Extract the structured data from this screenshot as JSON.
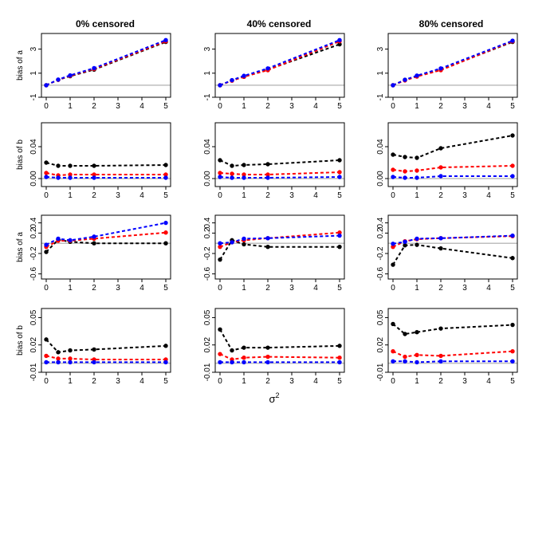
{
  "figure": {
    "x_axis_label": "σ",
    "x_axis_label_superscript": "2",
    "series_colors": {
      "black": "#000000",
      "red": "#ff0000",
      "blue": "#0000ff",
      "reference": "#bebebe"
    }
  },
  "columns": [
    {
      "title": "0% censored"
    },
    {
      "title": "40% censored"
    },
    {
      "title": "80% censored"
    }
  ],
  "chart_data": [
    {
      "type": "line",
      "row": 0,
      "col": 0,
      "ylabel": "bias of a",
      "x": [
        0,
        0.5,
        1,
        2,
        5
      ],
      "ylim": [
        -1,
        4.3
      ],
      "yticks": [
        "-1",
        "1",
        "3"
      ],
      "yticks_values": [
        -1,
        1,
        3
      ],
      "xticks": [
        "0",
        "1",
        "2",
        "3",
        "4",
        "5"
      ],
      "reference": 0,
      "series": [
        {
          "name": "black",
          "color": "#000000",
          "values": [
            0.0,
            0.45,
            0.75,
            1.3,
            3.6
          ]
        },
        {
          "name": "red",
          "color": "#ff0000",
          "values": [
            0.0,
            0.45,
            0.78,
            1.35,
            3.65
          ]
        },
        {
          "name": "blue",
          "color": "#0000ff",
          "values": [
            0.0,
            0.47,
            0.82,
            1.42,
            3.75
          ]
        }
      ]
    },
    {
      "type": "line",
      "row": 0,
      "col": 1,
      "ylabel": "",
      "x": [
        0,
        0.5,
        1,
        2,
        5
      ],
      "ylim": [
        -1,
        4.3
      ],
      "yticks": [
        "-1",
        "1",
        "3"
      ],
      "yticks_values": [
        -1,
        1,
        3
      ],
      "xticks": [
        "0",
        "1",
        "2",
        "3",
        "4",
        "5"
      ],
      "reference": 0,
      "series": [
        {
          "name": "black",
          "color": "#000000",
          "values": [
            0.0,
            0.4,
            0.7,
            1.3,
            3.4
          ]
        },
        {
          "name": "red",
          "color": "#ff0000",
          "values": [
            0.0,
            0.38,
            0.7,
            1.25,
            3.65
          ]
        },
        {
          "name": "blue",
          "color": "#0000ff",
          "values": [
            0.0,
            0.42,
            0.78,
            1.4,
            3.75
          ]
        }
      ]
    },
    {
      "type": "line",
      "row": 0,
      "col": 2,
      "ylabel": "",
      "x": [
        0,
        0.5,
        1,
        2,
        5
      ],
      "ylim": [
        -1,
        4.3
      ],
      "yticks": [
        "-1",
        "1",
        "3"
      ],
      "yticks_values": [
        -1,
        1,
        3
      ],
      "xticks": [
        "0",
        "1",
        "2",
        "3",
        "4",
        "5"
      ],
      "reference": 0,
      "series": [
        {
          "name": "black",
          "color": "#000000",
          "values": [
            0.0,
            0.45,
            0.75,
            1.3,
            3.6
          ]
        },
        {
          "name": "red",
          "color": "#ff0000",
          "values": [
            0.0,
            0.4,
            0.72,
            1.25,
            3.65
          ]
        },
        {
          "name": "blue",
          "color": "#0000ff",
          "values": [
            0.0,
            0.45,
            0.8,
            1.4,
            3.7
          ]
        }
      ]
    },
    {
      "type": "line",
      "row": 1,
      "col": 0,
      "ylabel": "bias of b",
      "x": [
        0,
        0.5,
        1,
        2,
        5
      ],
      "ylim": [
        -0.01,
        0.07
      ],
      "yticks": [
        "0.00",
        "0.04"
      ],
      "yticks_values": [
        0,
        0.04
      ],
      "xticks": [
        "0",
        "1",
        "2",
        "3",
        "4",
        "5"
      ],
      "reference": 0,
      "series": [
        {
          "name": "black",
          "color": "#000000",
          "values": [
            0.02,
            0.016,
            0.016,
            0.016,
            0.017
          ]
        },
        {
          "name": "red",
          "color": "#ff0000",
          "values": [
            0.007,
            0.004,
            0.005,
            0.005,
            0.005
          ]
        },
        {
          "name": "blue",
          "color": "#0000ff",
          "values": [
            0.002,
            0.001,
            0.001,
            0.001,
            0.001
          ]
        }
      ]
    },
    {
      "type": "line",
      "row": 1,
      "col": 1,
      "ylabel": "",
      "x": [
        0,
        0.5,
        1,
        2,
        5
      ],
      "ylim": [
        -0.01,
        0.07
      ],
      "yticks": [
        "0.00",
        "0.04"
      ],
      "yticks_values": [
        0,
        0.04
      ],
      "xticks": [
        "0",
        "1",
        "2",
        "3",
        "4",
        "5"
      ],
      "reference": 0,
      "series": [
        {
          "name": "black",
          "color": "#000000",
          "values": [
            0.023,
            0.016,
            0.017,
            0.018,
            0.023
          ]
        },
        {
          "name": "red",
          "color": "#ff0000",
          "values": [
            0.007,
            0.006,
            0.005,
            0.005,
            0.008
          ]
        },
        {
          "name": "blue",
          "color": "#0000ff",
          "values": [
            0.002,
            0.001,
            0.001,
            0.001,
            0.002
          ]
        }
      ]
    },
    {
      "type": "line",
      "row": 1,
      "col": 2,
      "ylabel": "",
      "x": [
        0,
        0.5,
        1,
        2,
        5
      ],
      "ylim": [
        -0.01,
        0.07
      ],
      "yticks": [
        "0.00",
        "0.04"
      ],
      "yticks_values": [
        0,
        0.04
      ],
      "xticks": [
        "0",
        "1",
        "2",
        "3",
        "4",
        "5"
      ],
      "reference": 0,
      "series": [
        {
          "name": "black",
          "color": "#000000",
          "values": [
            0.03,
            0.027,
            0.026,
            0.038,
            0.054
          ]
        },
        {
          "name": "red",
          "color": "#ff0000",
          "values": [
            0.011,
            0.009,
            0.01,
            0.014,
            0.016
          ]
        },
        {
          "name": "blue",
          "color": "#0000ff",
          "values": [
            0.002,
            0.001,
            0.001,
            0.003,
            0.003
          ]
        }
      ]
    },
    {
      "type": "line",
      "row": 2,
      "col": 0,
      "ylabel": "bias of a",
      "x": [
        0,
        0.5,
        1,
        2,
        5
      ],
      "ylim": [
        -0.7,
        0.55
      ],
      "yticks": [
        "-0.6",
        "-0.2",
        "0.2",
        "0.4"
      ],
      "yticks_values": [
        -0.6,
        -0.2,
        0.2,
        0.4
      ],
      "xticks": [
        "0",
        "1",
        "2",
        "3",
        "4",
        "5"
      ],
      "reference": 0,
      "series": [
        {
          "name": "black",
          "color": "#000000",
          "values": [
            -0.17,
            0.07,
            0.03,
            0.0,
            0.0
          ]
        },
        {
          "name": "red",
          "color": "#ff0000",
          "values": [
            -0.07,
            0.05,
            0.05,
            0.09,
            0.21
          ]
        },
        {
          "name": "blue",
          "color": "#0000ff",
          "values": [
            -0.03,
            0.09,
            0.06,
            0.13,
            0.4
          ]
        }
      ]
    },
    {
      "type": "line",
      "row": 2,
      "col": 1,
      "ylabel": "",
      "x": [
        0,
        0.5,
        1,
        2,
        5
      ],
      "ylim": [
        -0.7,
        0.55
      ],
      "yticks": [
        "-0.6",
        "-0.2",
        "0.2",
        "0.4"
      ],
      "yticks_values": [
        -0.6,
        -0.2,
        0.2,
        0.4
      ],
      "xticks": [
        "0",
        "1",
        "2",
        "3",
        "4",
        "5"
      ],
      "reference": 0,
      "series": [
        {
          "name": "black",
          "color": "#000000",
          "values": [
            -0.32,
            0.06,
            -0.02,
            -0.07,
            -0.07
          ]
        },
        {
          "name": "red",
          "color": "#ff0000",
          "values": [
            -0.07,
            0.02,
            0.06,
            0.1,
            0.21
          ]
        },
        {
          "name": "blue",
          "color": "#0000ff",
          "values": [
            0.0,
            0.02,
            0.09,
            0.1,
            0.15
          ]
        }
      ]
    },
    {
      "type": "line",
      "row": 2,
      "col": 2,
      "ylabel": "",
      "x": [
        0,
        0.5,
        1,
        2,
        5
      ],
      "ylim": [
        -0.7,
        0.55
      ],
      "yticks": [
        "-0.6",
        "-0.2",
        "0.2",
        "0.4"
      ],
      "yticks_values": [
        -0.6,
        -0.2,
        0.2,
        0.4
      ],
      "xticks": [
        "0",
        "1",
        "2",
        "3",
        "4",
        "5"
      ],
      "reference": 0,
      "series": [
        {
          "name": "black",
          "color": "#000000",
          "values": [
            -0.42,
            -0.04,
            -0.03,
            -0.1,
            -0.29
          ]
        },
        {
          "name": "red",
          "color": "#ff0000",
          "values": [
            -0.07,
            0.04,
            0.08,
            0.1,
            0.14
          ]
        },
        {
          "name": "blue",
          "color": "#0000ff",
          "values": [
            -0.01,
            0.03,
            0.09,
            0.1,
            0.15
          ]
        }
      ]
    },
    {
      "type": "line",
      "row": 3,
      "col": 0,
      "ylabel": "bias of b",
      "x": [
        0,
        0.5,
        1,
        2,
        5
      ],
      "ylim": [
        -0.01,
        0.06
      ],
      "yticks": [
        "-0.01",
        "0.02",
        "0.05"
      ],
      "yticks_values": [
        -0.01,
        0.02,
        0.05
      ],
      "xticks": [
        "0",
        "1",
        "2",
        "3",
        "4",
        "5"
      ],
      "reference": 0,
      "series": [
        {
          "name": "black",
          "color": "#000000",
          "values": [
            0.026,
            0.012,
            0.014,
            0.015,
            0.019
          ]
        },
        {
          "name": "red",
          "color": "#ff0000",
          "values": [
            0.008,
            0.005,
            0.005,
            0.004,
            0.004
          ]
        },
        {
          "name": "blue",
          "color": "#0000ff",
          "values": [
            0.001,
            0.001,
            0.001,
            0.001,
            0.001
          ]
        }
      ]
    },
    {
      "type": "line",
      "row": 3,
      "col": 1,
      "ylabel": "",
      "x": [
        0,
        0.5,
        1,
        2,
        5
      ],
      "ylim": [
        -0.01,
        0.06
      ],
      "yticks": [
        "-0.01",
        "0.02",
        "0.05"
      ],
      "yticks_values": [
        -0.01,
        0.02,
        0.05
      ],
      "xticks": [
        "0",
        "1",
        "2",
        "3",
        "4",
        "5"
      ],
      "reference": 0,
      "series": [
        {
          "name": "black",
          "color": "#000000",
          "values": [
            0.037,
            0.014,
            0.017,
            0.017,
            0.019
          ]
        },
        {
          "name": "red",
          "color": "#ff0000",
          "values": [
            0.01,
            0.004,
            0.006,
            0.007,
            0.006
          ]
        },
        {
          "name": "blue",
          "color": "#0000ff",
          "values": [
            0.001,
            0.001,
            0.001,
            0.001,
            0.001
          ]
        }
      ]
    },
    {
      "type": "line",
      "row": 3,
      "col": 2,
      "ylabel": "",
      "x": [
        0,
        0.5,
        1,
        2,
        5
      ],
      "ylim": [
        -0.01,
        0.06
      ],
      "yticks": [
        "-0.01",
        "0.02",
        "0.05"
      ],
      "yticks_values": [
        -0.01,
        0.02,
        0.05
      ],
      "xticks": [
        "0",
        "1",
        "2",
        "3",
        "4",
        "5"
      ],
      "reference": 0,
      "series": [
        {
          "name": "black",
          "color": "#000000",
          "values": [
            0.043,
            0.032,
            0.034,
            0.038,
            0.042
          ]
        },
        {
          "name": "red",
          "color": "#ff0000",
          "values": [
            0.013,
            0.007,
            0.009,
            0.008,
            0.013
          ]
        },
        {
          "name": "blue",
          "color": "#0000ff",
          "values": [
            0.002,
            0.002,
            0.001,
            0.002,
            0.002
          ]
        }
      ]
    }
  ]
}
